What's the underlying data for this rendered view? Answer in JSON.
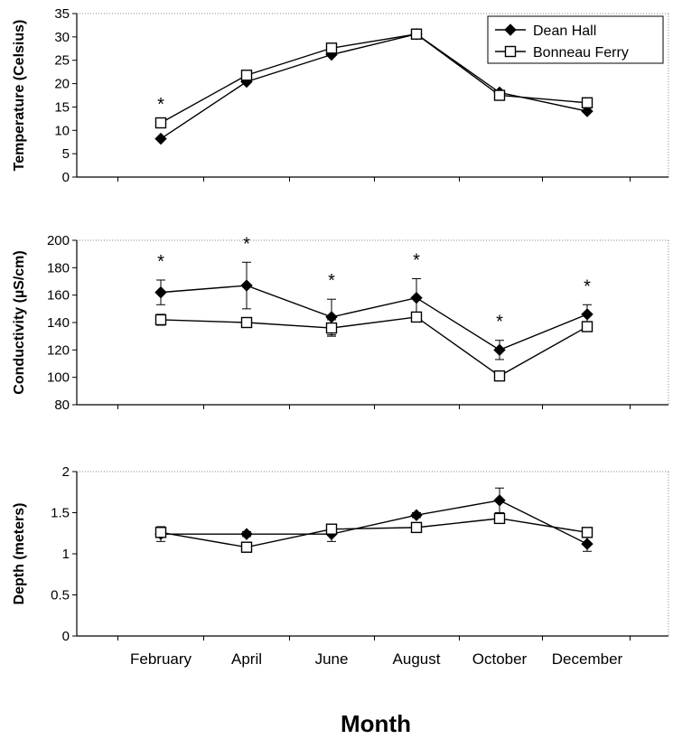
{
  "chart_data": [
    {
      "type": "line",
      "ylabel": "Temperature (Celsius)",
      "ylim": [
        0,
        35
      ],
      "yticks": [
        "0",
        "5",
        "10",
        "15",
        "20",
        "25",
        "30",
        "35"
      ],
      "grid": false,
      "legend_placement": "top-right",
      "categories": [
        "February",
        "April",
        "June",
        "August",
        "October",
        "December"
      ],
      "series": [
        {
          "name": "Dean Hall",
          "marker": "filled-diamond",
          "values": [
            8.2,
            20.4,
            26.2,
            30.6,
            18.1,
            14.1
          ]
        },
        {
          "name": "Bonneau Ferry",
          "marker": "open-square",
          "values": [
            11.6,
            21.8,
            27.6,
            30.6,
            17.5,
            15.9
          ]
        }
      ],
      "significance": [
        "*",
        "",
        "",
        "",
        "",
        ""
      ]
    },
    {
      "type": "line",
      "ylabel": "Conductivity (µS/cm)",
      "ylim": [
        80,
        200
      ],
      "yticks": [
        "80",
        "100",
        "120",
        "140",
        "160",
        "180",
        "200"
      ],
      "grid": false,
      "categories": [
        "February",
        "April",
        "June",
        "August",
        "October",
        "December"
      ],
      "series": [
        {
          "name": "Dean Hall",
          "values": [
            162,
            167,
            144,
            158,
            120,
            146
          ],
          "errors": [
            9,
            17,
            13,
            14,
            7,
            7
          ]
        },
        {
          "name": "Bonneau Ferry",
          "values": [
            142,
            140,
            136,
            144,
            101,
            137
          ],
          "errors": [
            4,
            0,
            6,
            0,
            0,
            0
          ]
        }
      ],
      "significance": [
        "*",
        "*",
        "*",
        "*",
        "*",
        "*"
      ]
    },
    {
      "type": "line",
      "ylabel": "Depth (meters)",
      "xlabel": "Month",
      "ylim": [
        0,
        2
      ],
      "yticks": [
        "0",
        "0.5",
        "1",
        "1.5",
        "2"
      ],
      "grid": false,
      "categories": [
        "February",
        "April",
        "June",
        "August",
        "October",
        "December"
      ],
      "series": [
        {
          "name": "Dean Hall",
          "values": [
            1.24,
            1.24,
            1.24,
            1.47,
            1.65,
            1.12
          ],
          "errors": [
            0.09,
            0.03,
            0.09,
            0.03,
            0.15,
            0.09
          ]
        },
        {
          "name": "Bonneau Ferry",
          "values": [
            1.26,
            1.08,
            1.3,
            1.32,
            1.43,
            1.26
          ],
          "errors": [
            0.04,
            0.06,
            0.04,
            0.05,
            0.05,
            0.04
          ]
        }
      ],
      "significance": [
        "",
        "",
        "",
        "",
        "",
        ""
      ]
    }
  ]
}
